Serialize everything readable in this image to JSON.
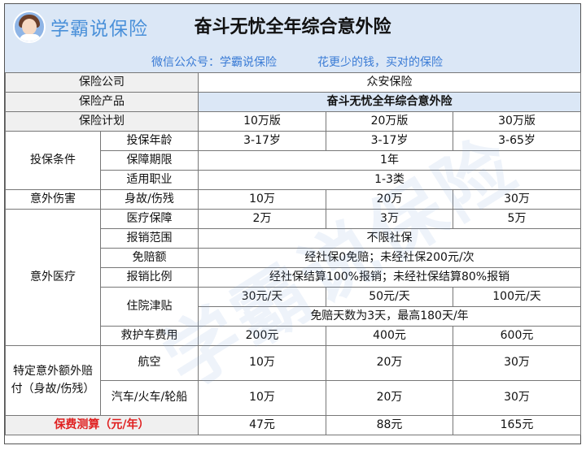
{
  "header": {
    "brand": "学霸说保险",
    "title": "奋斗无忧全年综合意外险",
    "wechat": "微信公众号：学霸说保险",
    "slogan": "花更少的钱，买对的保险"
  },
  "watermark": "学霸说保险",
  "rows": {
    "company": {
      "label": "保险公司",
      "value": "众安保险"
    },
    "product": {
      "label": "保险产品",
      "value": "奋斗无忧全年综合意外险"
    },
    "plan": {
      "label": "保险计划",
      "values": [
        "10万版",
        "20万版",
        "30万版"
      ]
    },
    "conditions": {
      "label": "投保条件",
      "age": {
        "label": "投保年龄",
        "values": [
          "3-17岁",
          "3-17岁",
          "3-65岁"
        ]
      },
      "term": {
        "label": "保障期限",
        "value": "1年"
      },
      "occupation": {
        "label": "适用职业",
        "value": "1-3类"
      }
    },
    "accident": {
      "label": "意外伤害",
      "death": {
        "label": "身故/伤残",
        "values": [
          "10万",
          "20万",
          "30万"
        ]
      }
    },
    "medical": {
      "label": "意外医疗",
      "coverage": {
        "label": "医疗保障",
        "values": [
          "2万",
          "3万",
          "5万"
        ]
      },
      "scope": {
        "label": "报销范围",
        "value": "不限社保"
      },
      "deductible": {
        "label": "免赔额",
        "value": "经社保0免赔；未经社保200元/次"
      },
      "ratio": {
        "label": "报销比例",
        "value": "经社保结算100%报销；未经社保结算80%报销"
      },
      "allowance": {
        "label": "住院津贴",
        "values": [
          "30元/天",
          "50元/天",
          "100元/天"
        ],
        "note": "免赔天数为3天，最高180天/年"
      },
      "ambulance": {
        "label": "救护车费用",
        "values": [
          "200元",
          "400元",
          "600元"
        ]
      }
    },
    "special": {
      "label": "特定意外额外赔付（身故/伤残）",
      "air": {
        "label": "航空",
        "values": [
          "10万",
          "20万",
          "30万"
        ]
      },
      "ground": {
        "label": "汽车/火车/轮船",
        "values": [
          "10万",
          "20万",
          "30万"
        ]
      }
    },
    "premium": {
      "label": "保费测算（元/年）",
      "values": [
        "47元",
        "88元",
        "165元"
      ]
    }
  }
}
